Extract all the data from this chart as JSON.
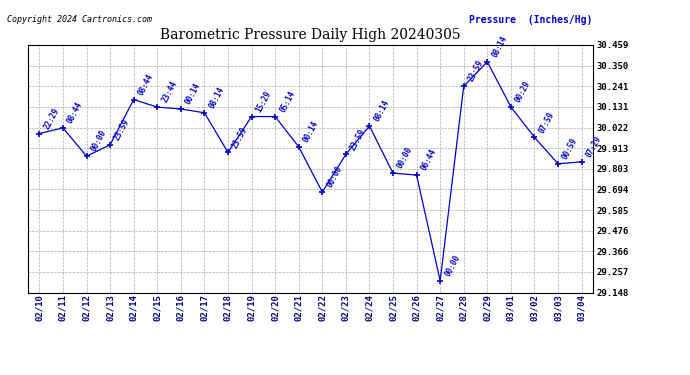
{
  "title": "Barometric Pressure Daily High 20240305",
  "ylabel": "Pressure  (Inches/Hg)",
  "copyright": "Copyright 2024 Cartronics.com",
  "line_color": "#0000cc",
  "background_color": "#ffffff",
  "grid_color": "#aaaaaa",
  "dates": [
    "02/10",
    "02/11",
    "02/12",
    "02/13",
    "02/14",
    "02/15",
    "02/16",
    "02/17",
    "02/18",
    "02/19",
    "02/20",
    "02/21",
    "02/22",
    "02/23",
    "02/24",
    "02/25",
    "02/26",
    "02/27",
    "02/28",
    "02/29",
    "03/01",
    "03/02",
    "03/03",
    "03/04"
  ],
  "pressures": [
    29.99,
    30.02,
    29.87,
    29.93,
    30.17,
    30.13,
    30.12,
    30.1,
    29.89,
    30.08,
    30.08,
    29.92,
    29.68,
    29.88,
    30.03,
    29.78,
    29.77,
    29.21,
    30.241,
    30.37,
    30.131,
    29.97,
    29.83,
    29.84
  ],
  "time_labels": [
    "22:29",
    "08:44",
    "00:00",
    "23:59",
    "08:44",
    "23:44",
    "00:14",
    "08:14",
    "23:59",
    "15:29",
    "05:14",
    "00:14",
    "00:00",
    "23:59",
    "08:14",
    "00:00",
    "06:44",
    "00:00",
    "23:59",
    "08:14",
    "00:29",
    "07:59",
    "00:59",
    "07:29"
  ],
  "ylim": [
    29.148,
    30.459
  ],
  "yticks": [
    29.148,
    29.257,
    29.366,
    29.476,
    29.585,
    29.694,
    29.803,
    29.913,
    30.022,
    30.131,
    30.241,
    30.35,
    30.459
  ]
}
